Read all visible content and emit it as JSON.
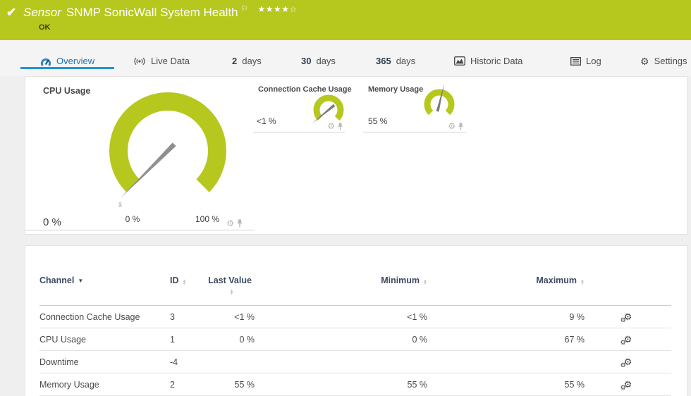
{
  "colors": {
    "accent_green": "#b6c81e",
    "active_tab_blue": "#2196d3",
    "needle_gray": "#8f8f8f"
  },
  "icons": {
    "gear": "⚙",
    "check": "✔",
    "flag": "⚐",
    "sort_up": "▲",
    "sort_down": "▼"
  },
  "header": {
    "kind": "Sensor",
    "title": "SNMP SonicWall System Health",
    "status": "OK",
    "stars_filled": "★★★★",
    "stars_empty": "☆"
  },
  "tabs": {
    "overview": {
      "label": "Overview"
    },
    "live": {
      "label": "Live Data"
    },
    "d2": {
      "num": "2",
      "unit": "days"
    },
    "d30": {
      "num": "30",
      "unit": "days"
    },
    "d365": {
      "num": "365",
      "unit": "days"
    },
    "historic": {
      "label": "Historic Data"
    },
    "log": {
      "label": "Log"
    },
    "settings": {
      "label": "Settings"
    }
  },
  "gauges": {
    "cpu": {
      "title": "CPU Usage",
      "value": "0 %",
      "fraction": 0,
      "scale_min": "0 %",
      "scale_max": "100 %",
      "avg_marker": "x̄"
    },
    "cache": {
      "title": "Connection Cache Usage",
      "value": "<1 %",
      "fraction": 0.02
    },
    "memory": {
      "title": "Memory Usage",
      "value": "55 %",
      "fraction": 0.55
    }
  },
  "table": {
    "headers": {
      "channel": "Channel",
      "id": "ID",
      "last": "Last Value",
      "min": "Minimum",
      "max": "Maximum"
    },
    "rows": [
      {
        "channel": "Connection Cache Usage",
        "id": "3",
        "last": "<1 %",
        "min": "<1 %",
        "max": "9 %"
      },
      {
        "channel": "CPU Usage",
        "id": "1",
        "last": "0 %",
        "min": "0 %",
        "max": "67 %"
      },
      {
        "channel": "Downtime",
        "id": "-4",
        "last": "",
        "min": "",
        "max": ""
      },
      {
        "channel": "Memory Usage",
        "id": "2",
        "last": "55 %",
        "min": "55 %",
        "max": "55 %"
      }
    ]
  }
}
